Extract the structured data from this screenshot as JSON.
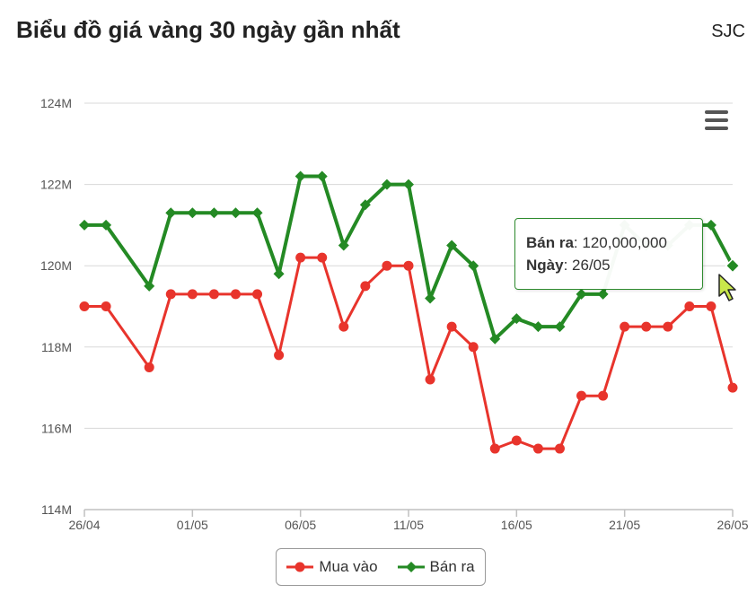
{
  "header": {
    "title": "Biểu đồ giá vàng 30 ngày gần nhất",
    "brand": "SJC"
  },
  "tooltip": {
    "series_label": "Bán ra",
    "value": "120,000,000",
    "date_label": "Ngày",
    "date": "26/05"
  },
  "colors": {
    "mua_vao": "#e8342c",
    "ban_ra": "#248a24",
    "grid": "#d8d8d8",
    "axis": "#c0c0c0"
  },
  "icons": {
    "menu": "hamburger-menu-icon",
    "cursor": "mouse-pointer-icon"
  },
  "chart_data": {
    "type": "line",
    "title": "Biểu đồ giá vàng 30 ngày gần nhất",
    "ylim": [
      114000000,
      124000000
    ],
    "y_ticks": [
      114000000,
      116000000,
      118000000,
      120000000,
      122000000,
      124000000
    ],
    "y_tick_labels": [
      "114M",
      "116M",
      "118M",
      "120M",
      "122M",
      "124M"
    ],
    "x_tick_labels": [
      "26/04",
      "01/05",
      "06/05",
      "11/05",
      "16/05",
      "21/05",
      "26/05"
    ],
    "x": [
      "26/04",
      "27/04",
      "28/04",
      "29/04",
      "30/04",
      "01/05",
      "02/05",
      "03/05",
      "04/05",
      "05/05",
      "06/05",
      "07/05",
      "08/05",
      "09/05",
      "10/05",
      "11/05",
      "12/05",
      "13/05",
      "14/05",
      "15/05",
      "16/05",
      "17/05",
      "18/05",
      "19/05",
      "20/05",
      "21/05",
      "22/05",
      "23/05",
      "24/05",
      "25/05",
      "26/05"
    ],
    "grid": true,
    "legend_position": "bottom-center",
    "series": [
      {
        "name": "Mua vào",
        "marker": "circle",
        "values": [
          119000000,
          119000000,
          null,
          117500000,
          119300000,
          119300000,
          119300000,
          119300000,
          119300000,
          117800000,
          120200000,
          120200000,
          118500000,
          119500000,
          120000000,
          120000000,
          117200000,
          118500000,
          118000000,
          115500000,
          115700000,
          115500000,
          115500000,
          116800000,
          116800000,
          118500000,
          118500000,
          118500000,
          119000000,
          119000000,
          117000000
        ]
      },
      {
        "name": "Bán ra",
        "marker": "diamond",
        "values": [
          121000000,
          121000000,
          null,
          119500000,
          121300000,
          121300000,
          121300000,
          121300000,
          121300000,
          119800000,
          122200000,
          122200000,
          120500000,
          121500000,
          122000000,
          122000000,
          119200000,
          120500000,
          120000000,
          118200000,
          118700000,
          118500000,
          118500000,
          119300000,
          119300000,
          121000000,
          120500000,
          120500000,
          121000000,
          121000000,
          120000000
        ]
      }
    ]
  }
}
